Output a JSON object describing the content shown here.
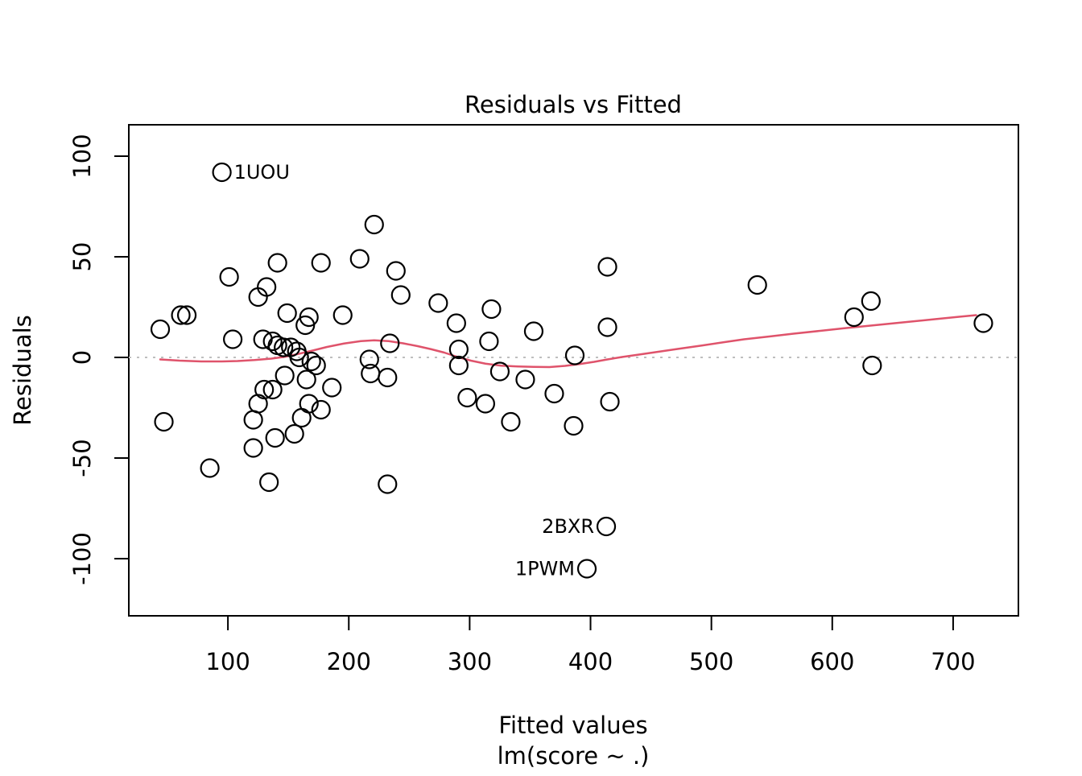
{
  "figure": {
    "title": "Residuals vs Fitted",
    "xlabel": "Fitted values",
    "xlabel_sub": "lm(score ~ .)",
    "ylabel": "Residuals"
  },
  "colors": {
    "point_stroke": "#000000",
    "smooth_line": "#DF536B",
    "zero_line": "#BEBEBE",
    "axis": "#000000",
    "background": "#FFFFFF"
  },
  "chart_data": {
    "type": "scatter",
    "title": "Residuals vs Fitted",
    "xlabel": "Fitted values",
    "xlabel_sub": "lm(score ~ .)",
    "ylabel": "Residuals",
    "xlim": [
      18,
      754
    ],
    "ylim": [
      -128.4,
      115.6
    ],
    "x_ticks": [
      100,
      200,
      300,
      400,
      500,
      600,
      700
    ],
    "y_ticks": [
      -100,
      -50,
      0,
      50,
      100
    ],
    "grid": false,
    "legend": "none",
    "zero_line": {
      "y": 0,
      "style": "dotted",
      "color": "#BEBEBE"
    },
    "points": [
      [
        95,
        92
      ],
      [
        44,
        14
      ],
      [
        47,
        -32
      ],
      [
        61,
        21
      ],
      [
        66,
        21
      ],
      [
        85,
        -55
      ],
      [
        101,
        40
      ],
      [
        104,
        9
      ],
      [
        121,
        -31
      ],
      [
        121,
        -45
      ],
      [
        125,
        30
      ],
      [
        125,
        -23
      ],
      [
        129,
        9
      ],
      [
        130,
        -16
      ],
      [
        137,
        -16
      ],
      [
        132,
        35
      ],
      [
        134,
        -62
      ],
      [
        137,
        8
      ],
      [
        139,
        -40
      ],
      [
        141,
        47
      ],
      [
        141,
        6
      ],
      [
        146,
        5
      ],
      [
        147,
        -9
      ],
      [
        149,
        22
      ],
      [
        152,
        5
      ],
      [
        155,
        -38
      ],
      [
        157,
        3
      ],
      [
        159,
        0
      ],
      [
        161,
        -30
      ],
      [
        164,
        16
      ],
      [
        165,
        -11
      ],
      [
        167,
        -23
      ],
      [
        167,
        20
      ],
      [
        169,
        -2
      ],
      [
        173,
        -4
      ],
      [
        177,
        47
      ],
      [
        177,
        -26
      ],
      [
        186,
        -15
      ],
      [
        195,
        21
      ],
      [
        209,
        49
      ],
      [
        217,
        -1
      ],
      [
        218,
        -8
      ],
      [
        221,
        66
      ],
      [
        232,
        -10
      ],
      [
        232,
        -63
      ],
      [
        234,
        7
      ],
      [
        239,
        43
      ],
      [
        243,
        31
      ],
      [
        274,
        27
      ],
      [
        289,
        17
      ],
      [
        291,
        4
      ],
      [
        291,
        -4
      ],
      [
        298,
        -20
      ],
      [
        313,
        -23
      ],
      [
        316,
        8
      ],
      [
        318,
        24
      ],
      [
        325,
        -7
      ],
      [
        334,
        -32
      ],
      [
        346,
        -11
      ],
      [
        353,
        13
      ],
      [
        370,
        -18
      ],
      [
        386,
        -34
      ],
      [
        387,
        1
      ],
      [
        397,
        -105
      ],
      [
        413,
        -84
      ],
      [
        414,
        45
      ],
      [
        414,
        15
      ],
      [
        416,
        -22
      ],
      [
        538,
        36
      ],
      [
        618,
        20
      ],
      [
        632,
        28
      ],
      [
        633,
        -4
      ],
      [
        725,
        17
      ]
    ],
    "labeled_points": [
      {
        "label": "1UOU",
        "x": 95,
        "y": 92,
        "side": "right"
      },
      {
        "label": "2BXR",
        "x": 413,
        "y": -84,
        "side": "left"
      },
      {
        "label": "1PWM",
        "x": 397,
        "y": -105,
        "side": "left"
      }
    ],
    "smooth_line": {
      "name": "lowess-smooth",
      "color": "#DF536B",
      "points": [
        [
          44,
          -1
        ],
        [
          60,
          -1.6
        ],
        [
          78,
          -2
        ],
        [
          95,
          -2
        ],
        [
          108,
          -1.8
        ],
        [
          122,
          -1.3
        ],
        [
          136,
          -0.6
        ],
        [
          148,
          0.4
        ],
        [
          158,
          1.7
        ],
        [
          170,
          3.4
        ],
        [
          182,
          5.2
        ],
        [
          196,
          6.9
        ],
        [
          210,
          8.1
        ],
        [
          221,
          8.5
        ],
        [
          233,
          8.1
        ],
        [
          245,
          7
        ],
        [
          257,
          5.6
        ],
        [
          268,
          4.1
        ],
        [
          279,
          2.4
        ],
        [
          289,
          0.4
        ],
        [
          301,
          -1.6
        ],
        [
          313,
          -3.1
        ],
        [
          326,
          -4.1
        ],
        [
          340,
          -4.5
        ],
        [
          353,
          -4.7
        ],
        [
          366,
          -4.8
        ],
        [
          379,
          -4.2
        ],
        [
          391,
          -3.3
        ],
        [
          403,
          -2.2
        ],
        [
          414,
          -1
        ],
        [
          426,
          0.2
        ],
        [
          440,
          1.4
        ],
        [
          456,
          2.8
        ],
        [
          472,
          4.2
        ],
        [
          492,
          5.9
        ],
        [
          512,
          7.7
        ],
        [
          527,
          9
        ],
        [
          548,
          10.4
        ],
        [
          568,
          11.8
        ],
        [
          590,
          13.2
        ],
        [
          610,
          14.5
        ],
        [
          635,
          16
        ],
        [
          660,
          17.5
        ],
        [
          685,
          19
        ],
        [
          705,
          20.2
        ],
        [
          719,
          21
        ]
      ]
    }
  }
}
